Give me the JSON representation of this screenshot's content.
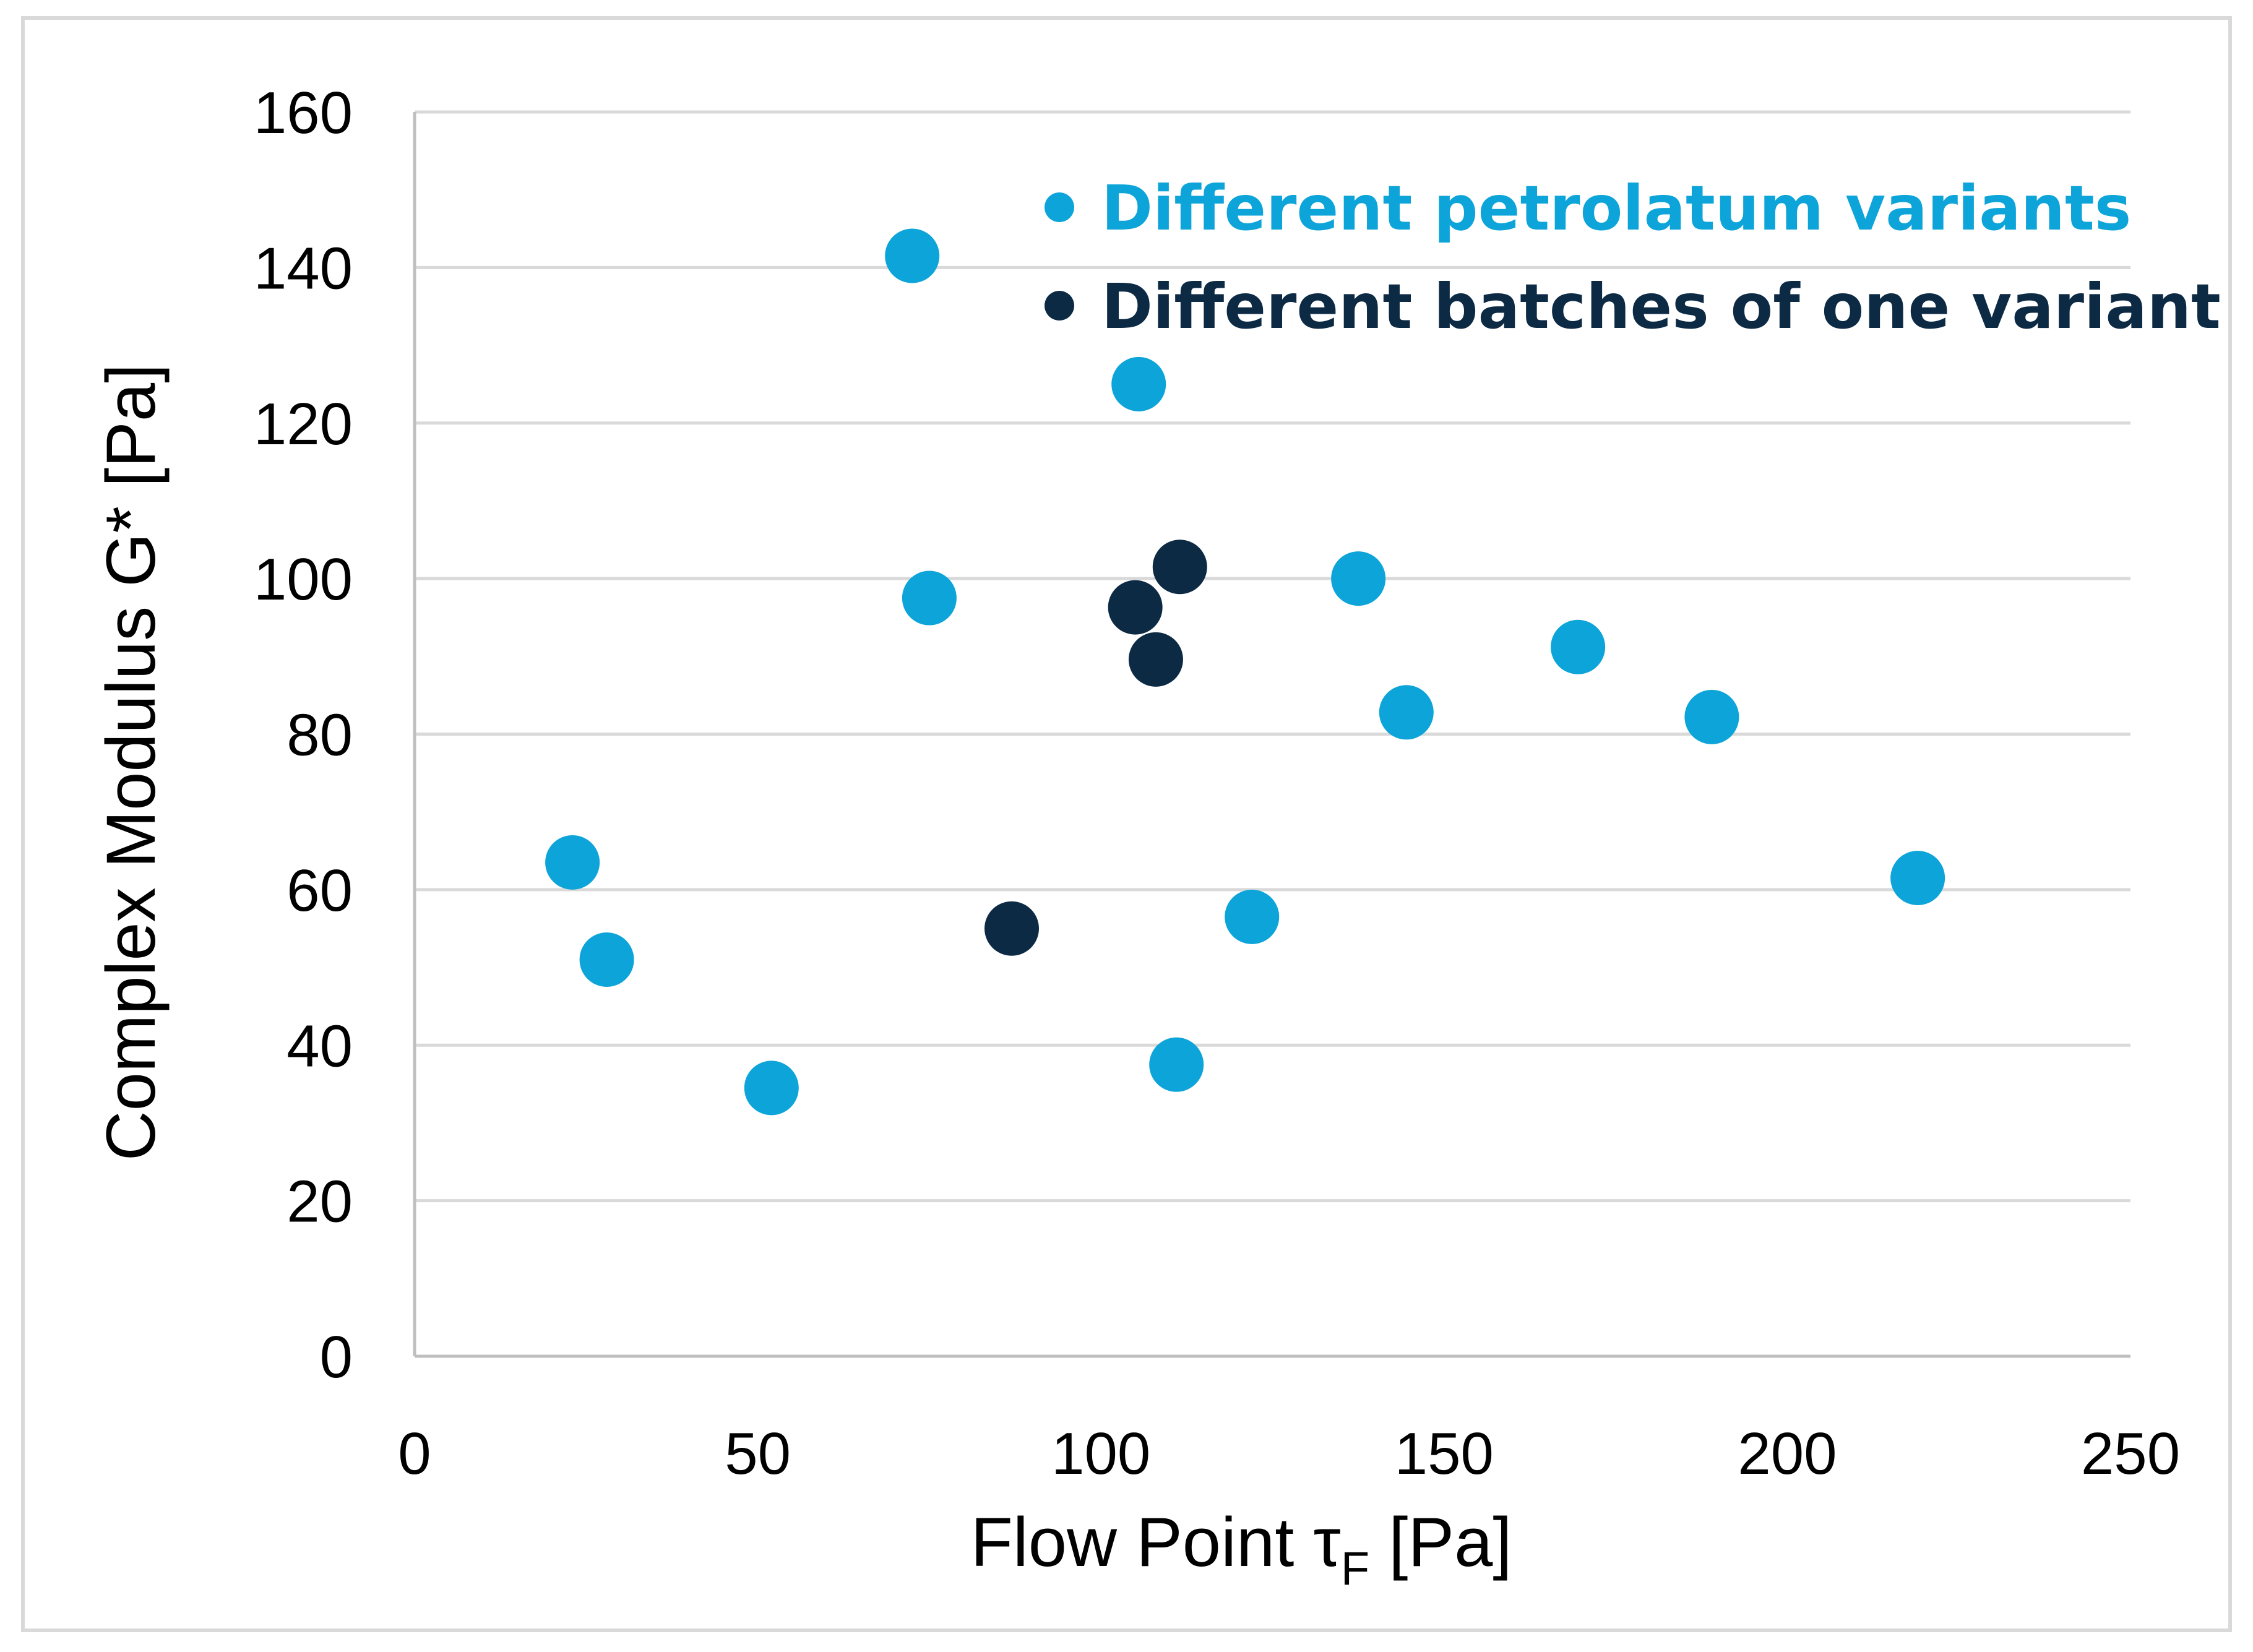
{
  "chart_data": {
    "type": "scatter",
    "title": "",
    "xlabel": {
      "prefix": "Flow Point ",
      "symbol": "τ",
      "subscript": "F",
      "suffix": " [Pa]"
    },
    "ylabel": "Complex Modulus G* [Pa]",
    "xlim": [
      0,
      250
    ],
    "ylim": [
      0,
      160
    ],
    "xticks": [
      0,
      50,
      100,
      150,
      200,
      250
    ],
    "yticks": [
      0,
      20,
      40,
      60,
      80,
      100,
      120,
      140,
      160
    ],
    "grid": "horizontal",
    "legend_position": "top-right",
    "series": [
      {
        "name": "Different petrolatum variants",
        "color": "#0da4d9",
        "points": [
          {
            "x": 23,
            "y": 63.5
          },
          {
            "x": 28,
            "y": 51
          },
          {
            "x": 52,
            "y": 34.5
          },
          {
            "x": 72.5,
            "y": 141.5
          },
          {
            "x": 75,
            "y": 97.5
          },
          {
            "x": 105.5,
            "y": 125
          },
          {
            "x": 111,
            "y": 37.5
          },
          {
            "x": 122,
            "y": 56.5
          },
          {
            "x": 137.5,
            "y": 100
          },
          {
            "x": 144.5,
            "y": 82.8
          },
          {
            "x": 169.5,
            "y": 91.2
          },
          {
            "x": 189,
            "y": 82.2
          },
          {
            "x": 219,
            "y": 61.5
          }
        ]
      },
      {
        "name": "Different batches of one variant",
        "color": "#0d2a45",
        "points": [
          {
            "x": 87,
            "y": 55
          },
          {
            "x": 105,
            "y": 96.3
          },
          {
            "x": 108,
            "y": 89.6
          },
          {
            "x": 111.5,
            "y": 101.5
          }
        ]
      }
    ]
  },
  "colors": {
    "grid": "#d9d9d9",
    "axis": "#bfbfbf",
    "frame": "#d9d9d9"
  }
}
